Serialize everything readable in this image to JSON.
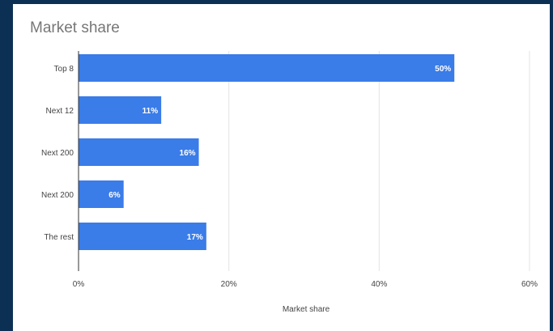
{
  "colors": {
    "frame": "#0c3054",
    "bar": "#3a7ce8",
    "grid": "#e3e3e3",
    "axis": "#333333"
  },
  "chart_data": {
    "type": "bar",
    "orientation": "horizontal",
    "title": "Market share",
    "xlabel": "Market share",
    "ylabel": "",
    "categories": [
      "Top 8",
      "Next 12",
      "Next 200",
      "Next 200",
      "The rest"
    ],
    "values": [
      50,
      11,
      16,
      6,
      17
    ],
    "value_labels": [
      "50%",
      "11%",
      "16%",
      "6%",
      "17%"
    ],
    "xlim": [
      0,
      60
    ],
    "xticks": [
      0,
      20,
      40,
      60
    ],
    "xtick_labels": [
      "0%",
      "20%",
      "40%",
      "60%"
    ],
    "grid": true,
    "legend": "none"
  }
}
